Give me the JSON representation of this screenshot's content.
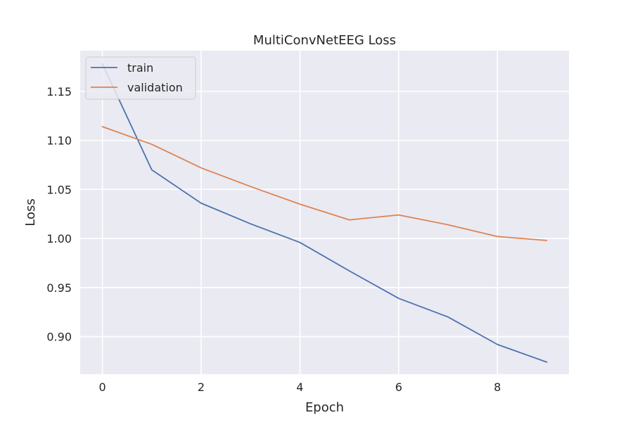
{
  "chart_data": {
    "type": "line",
    "title": "MultiConvNetEEG Loss",
    "xlabel": "Epoch",
    "ylabel": "Loss",
    "x": [
      0,
      1,
      2,
      3,
      4,
      5,
      6,
      7,
      8,
      9
    ],
    "xlim": [
      -0.45,
      9.45
    ],
    "ylim": [
      0.8617,
      1.1915
    ],
    "xticks": [
      0,
      2,
      4,
      6,
      8
    ],
    "yticks": [
      0.9,
      0.95,
      1.0,
      1.05,
      1.1,
      1.15
    ],
    "xtick_labels": [
      "0",
      "2",
      "4",
      "6",
      "8"
    ],
    "ytick_labels": [
      "0.90",
      "0.95",
      "1.00",
      "1.05",
      "1.10",
      "1.15"
    ],
    "grid": true,
    "legend_position": "upper-left",
    "series": [
      {
        "name": "train",
        "color": "#4c72b0",
        "values": [
          1.178,
          1.07,
          1.036,
          1.015,
          0.996,
          0.967,
          0.939,
          0.92,
          0.892,
          0.874
        ]
      },
      {
        "name": "validation",
        "color": "#dd8452",
        "values": [
          1.114,
          1.096,
          1.072,
          1.053,
          1.035,
          1.019,
          1.024,
          1.014,
          1.002,
          0.998
        ]
      }
    ],
    "colors": {
      "background": "#ffffff",
      "plot_area": "#eaeaf2",
      "grid": "#ffffff"
    }
  }
}
